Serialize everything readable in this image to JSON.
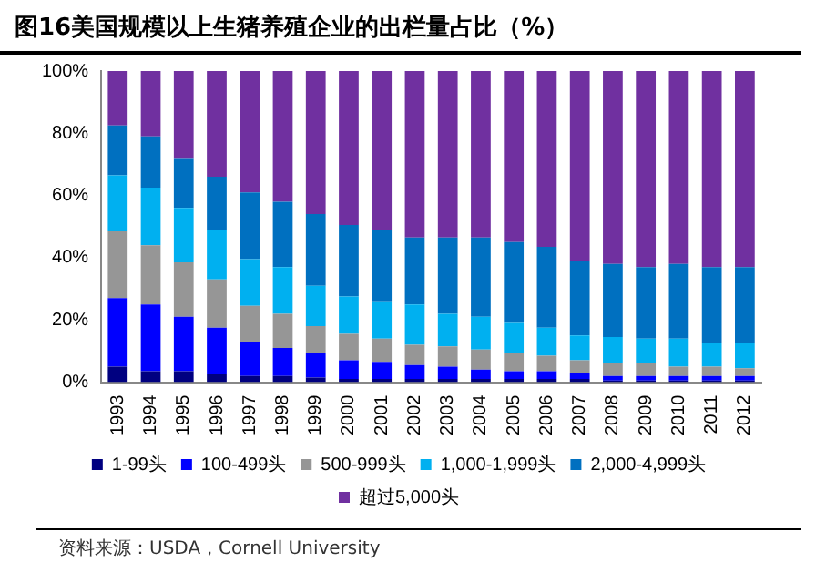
{
  "chart_data": {
    "type": "bar",
    "stacked": true,
    "title": "图16美国规模以上生猪养殖企业的出栏量占比（%）",
    "categories": [
      "1993",
      "1994",
      "1995",
      "1996",
      "1997",
      "1998",
      "1999",
      "2000",
      "2001",
      "2002",
      "2003",
      "2004",
      "2005",
      "2006",
      "2007",
      "2008",
      "2009",
      "2010",
      "2011",
      "2012"
    ],
    "series": [
      {
        "name": "1-99头",
        "color": "#000080",
        "values": [
          5,
          3.5,
          3.5,
          2.5,
          2,
          2,
          1.5,
          1,
          1,
          1,
          1,
          1,
          1,
          1,
          1,
          0.5,
          0.5,
          0.5,
          0.5,
          0.5
        ]
      },
      {
        "name": "100-499头",
        "color": "#0000ff",
        "values": [
          22,
          21.5,
          17.5,
          15,
          11,
          9,
          8,
          6,
          5.5,
          4.5,
          4,
          3,
          2.5,
          2.5,
          2,
          1.5,
          1.5,
          1.5,
          1.5,
          1.5
        ]
      },
      {
        "name": "500-999头",
        "color": "#969696",
        "values": [
          21.5,
          19,
          17.5,
          15.5,
          11.5,
          11,
          8.5,
          8.5,
          7.5,
          6.5,
          6.5,
          6.5,
          6,
          5,
          4,
          4,
          4,
          3,
          3,
          2.5
        ]
      },
      {
        "name": "1,000-1,999头",
        "color": "#00b0f0",
        "values": [
          18,
          18.5,
          17.5,
          16,
          15,
          15,
          13,
          12,
          12,
          13,
          10.5,
          10.5,
          9.5,
          9,
          8,
          8.5,
          8,
          9,
          7.5,
          8
        ]
      },
      {
        "name": "2,000-4,999头",
        "color": "#0070c0",
        "values": [
          16,
          16.5,
          16,
          17,
          21.5,
          21,
          23,
          23,
          23,
          21.5,
          24.5,
          25.5,
          26,
          26,
          24,
          23.5,
          23,
          24,
          24.5,
          24.5
        ]
      },
      {
        "name": "超过5,000头",
        "color": "#7030a0",
        "values": [
          17.5,
          21,
          28,
          34,
          39,
          42,
          46,
          49.5,
          51,
          53.5,
          53.5,
          53.5,
          55,
          56.5,
          61,
          62,
          63,
          62,
          63,
          63
        ]
      }
    ],
    "ylim": [
      0,
      100
    ],
    "yticks": [
      {
        "value": 0,
        "label": "0%"
      },
      {
        "value": 20,
        "label": "20%"
      },
      {
        "value": 40,
        "label": "40%"
      },
      {
        "value": 60,
        "label": "60%"
      },
      {
        "value": 80,
        "label": "80%"
      },
      {
        "value": 100,
        "label": "100%"
      }
    ],
    "grid": false,
    "legend": "bottom",
    "annotations": [
      "资料来源：USDA，Cornell University"
    ]
  }
}
